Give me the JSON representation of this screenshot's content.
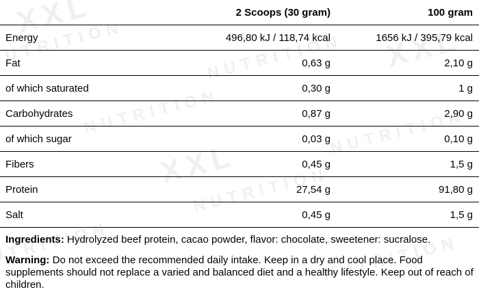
{
  "watermark": {
    "brand": "XXL",
    "text": "NUTRITION"
  },
  "table": {
    "headers": {
      "nutrient": "",
      "per_serving": "2 Scoops (30 gram)",
      "per_100g": "100 gram"
    },
    "rows": [
      {
        "name": "Energy",
        "per_serving": "496,80 kJ / 118,74 kcal",
        "per_100g": "1656 kJ / 395,79 kcal",
        "indent": false
      },
      {
        "name": "Fat",
        "per_serving": "0,63 g",
        "per_100g": "2,10 g",
        "indent": false
      },
      {
        "name": "of which saturated",
        "per_serving": "0,30 g",
        "per_100g": "1 g",
        "indent": true
      },
      {
        "name": "Carbohydrates",
        "per_serving": "0,87 g",
        "per_100g": "2,90 g",
        "indent": false
      },
      {
        "name": "of which sugar",
        "per_serving": "0,03 g",
        "per_100g": "0,10 g",
        "indent": true
      },
      {
        "name": "Fibers",
        "per_serving": "0,45 g",
        "per_100g": "1,5 g",
        "indent": false
      },
      {
        "name": "Protein",
        "per_serving": "27,54 g",
        "per_100g": "91,80 g",
        "indent": false
      },
      {
        "name": "Salt",
        "per_serving": "0,45 g",
        "per_100g": "1,5 g",
        "indent": false
      }
    ]
  },
  "ingredients": {
    "label": "Ingredients:",
    "text": " Hydrolyzed beef protein, cacao powder, flavor: chocolate, sweetener: sucralose."
  },
  "warning": {
    "label": "Warning:",
    "text": " Do not exceed the recommended daily intake. Keep in a dry and cool place. Food supplements should not replace a varied and balanced diet and a healthy lifestyle. Keep out of reach of children."
  }
}
